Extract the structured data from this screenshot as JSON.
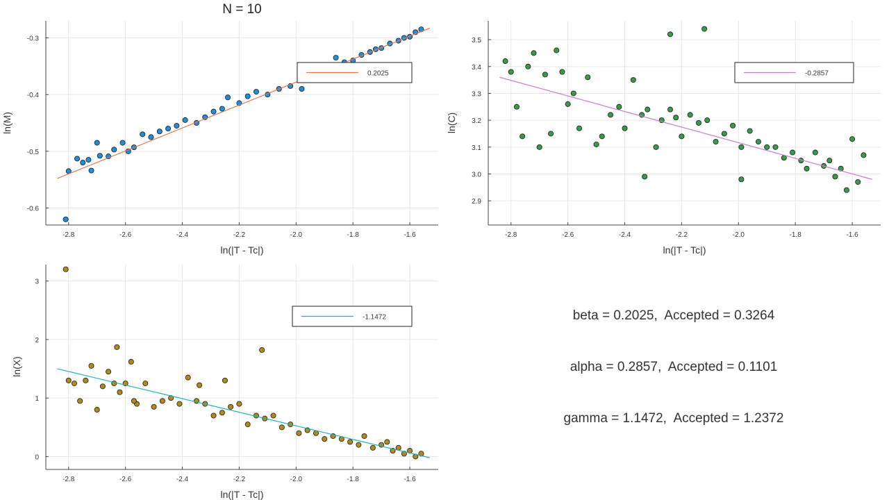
{
  "summary": {
    "line1": "beta = 0.2025,  Accepted = 0.3264",
    "line2": "alpha = 0.2857,  Accepted = 0.1101",
    "line3": "gamma = 1.1472,  Accepted = 1.2372"
  },
  "chart_data": [
    {
      "type": "scatter",
      "title": "N = 10",
      "xlabel": "ln(|T - Tc|)",
      "ylabel": "ln(M)",
      "xlim": [
        -2.88,
        -1.5
      ],
      "ylim": [
        -0.63,
        -0.27
      ],
      "xticks": [
        -2.8,
        -2.6,
        -2.4,
        -2.2,
        -2.0,
        -1.8,
        -1.6
      ],
      "xtick_labels": [
        "-2.8",
        "-2.6",
        "-2.4",
        "-2.2",
        "-2.0",
        "-1.8",
        "-1.6"
      ],
      "yticks": [
        -0.6,
        -0.5,
        -0.4,
        -0.3
      ],
      "ytick_labels": [
        "-0.6",
        "-0.5",
        "-0.4",
        "-0.3"
      ],
      "grid": true,
      "legend": {
        "position": "top-right",
        "entries": [
          "0.2025"
        ]
      },
      "marker_color": "#1f8fdc",
      "fit_color": "#e8734a",
      "fit_line": {
        "x": [
          -2.84,
          -1.53
        ],
        "y": [
          -0.548,
          -0.283
        ]
      },
      "series": [
        {
          "x": [
            -2.81,
            -2.8,
            -2.77,
            -2.75,
            -2.73,
            -2.72,
            -2.7,
            -2.69,
            -2.66,
            -2.64,
            -2.61,
            -2.59,
            -2.57,
            -2.54,
            -2.51,
            -2.48,
            -2.45,
            -2.42,
            -2.39,
            -2.35,
            -2.32,
            -2.29,
            -2.26,
            -2.24,
            -2.2,
            -2.17,
            -2.14,
            -2.1,
            -2.06,
            -2.02,
            -1.98,
            -1.96,
            -1.92,
            -1.88,
            -1.86,
            -1.83,
            -1.8,
            -1.77,
            -1.74,
            -1.72,
            -1.7,
            -1.67,
            -1.64,
            -1.62,
            -1.6,
            -1.58,
            -1.56
          ],
          "y": [
            -0.62,
            -0.535,
            -0.513,
            -0.52,
            -0.515,
            -0.534,
            -0.485,
            -0.508,
            -0.509,
            -0.497,
            -0.485,
            -0.5,
            -0.493,
            -0.47,
            -0.475,
            -0.465,
            -0.46,
            -0.455,
            -0.445,
            -0.45,
            -0.44,
            -0.43,
            -0.425,
            -0.405,
            -0.415,
            -0.403,
            -0.395,
            -0.4,
            -0.39,
            -0.385,
            -0.39,
            -0.37,
            -0.365,
            -0.36,
            -0.335,
            -0.343,
            -0.34,
            -0.33,
            -0.325,
            -0.32,
            -0.318,
            -0.31,
            -0.305,
            -0.3,
            -0.298,
            -0.29,
            -0.285
          ]
        }
      ]
    },
    {
      "type": "scatter",
      "xlabel": "ln(|T - Tc|)",
      "ylabel": "ln(C)",
      "xlim": [
        -2.88,
        -1.5
      ],
      "ylim": [
        2.81,
        3.57
      ],
      "xticks": [
        -2.8,
        -2.6,
        -2.4,
        -2.2,
        -2.0,
        -1.8,
        -1.6
      ],
      "xtick_labels": [
        "-2.8",
        "-2.6",
        "-2.4",
        "-2.2",
        "-2.0",
        "-1.8",
        "-1.6"
      ],
      "yticks": [
        2.9,
        3.0,
        3.1,
        3.2,
        3.3,
        3.4,
        3.5
      ],
      "ytick_labels": [
        "2.9",
        "3.0",
        "3.1",
        "3.2",
        "3.3",
        "3.4",
        "3.5"
      ],
      "grid": true,
      "legend": {
        "position": "top-right",
        "entries": [
          "-0.2857"
        ]
      },
      "marker_color": "#3a9a48",
      "fit_color": "#c77bd6",
      "fit_line": {
        "x": [
          -2.84,
          -1.53
        ],
        "y": [
          3.36,
          2.98
        ]
      },
      "series": [
        {
          "x": [
            -2.82,
            -2.8,
            -2.78,
            -2.76,
            -2.74,
            -2.72,
            -2.7,
            -2.68,
            -2.66,
            -2.64,
            -2.62,
            -2.6,
            -2.58,
            -2.56,
            -2.53,
            -2.5,
            -2.48,
            -2.45,
            -2.42,
            -2.4,
            -2.37,
            -2.34,
            -2.32,
            -2.29,
            -2.27,
            -2.24,
            -2.22,
            -2.2,
            -2.17,
            -2.14,
            -2.11,
            -2.08,
            -2.05,
            -2.02,
            -1.99,
            -1.96,
            -1.93,
            -1.9,
            -1.87,
            -1.84,
            -1.81,
            -1.78,
            -1.76,
            -1.73,
            -1.7,
            -1.68,
            -1.66,
            -1.64,
            -1.62,
            -1.6,
            -1.58,
            -1.56,
            -2.24,
            -2.12,
            -2.33,
            -1.99
          ],
          "y": [
            3.42,
            3.38,
            3.25,
            3.14,
            3.4,
            3.45,
            3.1,
            3.37,
            3.15,
            3.46,
            3.38,
            3.26,
            3.3,
            3.17,
            3.36,
            3.11,
            3.14,
            3.22,
            3.25,
            3.17,
            3.35,
            3.22,
            3.24,
            3.1,
            3.2,
            3.24,
            3.21,
            3.14,
            3.22,
            3.19,
            3.2,
            3.12,
            3.15,
            3.18,
            3.1,
            3.16,
            3.12,
            3.1,
            3.1,
            3.06,
            3.08,
            3.05,
            3.02,
            3.08,
            3.03,
            3.05,
            2.99,
            3.02,
            2.94,
            3.13,
            2.97,
            3.07,
            3.52,
            3.54,
            2.99,
            2.98
          ]
        }
      ]
    },
    {
      "type": "scatter",
      "xlabel": "ln(|T - Tc|)",
      "ylabel": "ln(X)",
      "xlim": [
        -2.88,
        -1.5
      ],
      "ylim": [
        -0.22,
        3.28
      ],
      "xticks": [
        -2.8,
        -2.6,
        -2.4,
        -2.2,
        -2.0,
        -1.8,
        -1.6
      ],
      "xtick_labels": [
        "-2.8",
        "-2.6",
        "-2.4",
        "-2.2",
        "-2.0",
        "-1.8",
        "-1.6"
      ],
      "yticks": [
        0,
        1,
        2,
        3
      ],
      "ytick_labels": [
        "0",
        "1",
        "2",
        "3"
      ],
      "grid": true,
      "legend": {
        "position": "top-right",
        "entries": [
          "-1.1472"
        ]
      },
      "marker_color": "#b08a1c",
      "fit_color": "#1fb0b8",
      "fit_line": {
        "x": [
          -2.84,
          -1.53
        ],
        "y": [
          1.5,
          -0.02
        ]
      },
      "series": [
        {
          "x": [
            -2.81,
            -2.8,
            -2.78,
            -2.76,
            -2.74,
            -2.72,
            -2.7,
            -2.68,
            -2.66,
            -2.64,
            -2.62,
            -2.6,
            -2.58,
            -2.56,
            -2.53,
            -2.5,
            -2.47,
            -2.44,
            -2.41,
            -2.38,
            -2.35,
            -2.32,
            -2.29,
            -2.26,
            -2.23,
            -2.2,
            -2.17,
            -2.14,
            -2.11,
            -2.08,
            -2.05,
            -2.02,
            -1.99,
            -1.96,
            -1.93,
            -1.9,
            -1.87,
            -1.84,
            -1.81,
            -1.78,
            -1.76,
            -1.73,
            -1.7,
            -1.68,
            -1.66,
            -1.64,
            -1.62,
            -1.6,
            -1.58,
            -1.56,
            -2.63,
            -2.12,
            -2.57,
            -2.34,
            -2.25
          ],
          "y": [
            3.2,
            1.3,
            1.25,
            0.95,
            1.3,
            1.55,
            0.8,
            1.2,
            1.45,
            1.25,
            1.1,
            1.25,
            1.62,
            0.9,
            1.25,
            0.85,
            0.95,
            1.0,
            0.9,
            1.35,
            0.95,
            0.9,
            0.7,
            0.75,
            0.85,
            0.9,
            0.55,
            0.7,
            0.65,
            0.7,
            0.5,
            0.55,
            0.4,
            0.45,
            0.4,
            0.3,
            0.35,
            0.3,
            0.25,
            0.2,
            0.35,
            0.15,
            0.2,
            0.25,
            0.1,
            0.15,
            0.05,
            0.1,
            0.0,
            0.05,
            1.87,
            1.82,
            0.95,
            1.22,
            1.3
          ]
        }
      ]
    }
  ]
}
